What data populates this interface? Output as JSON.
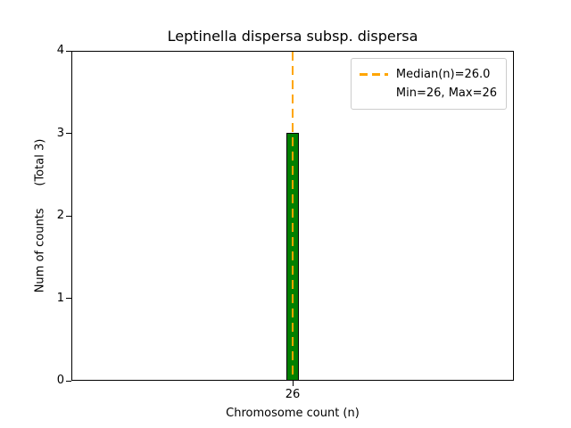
{
  "chart_data": {
    "type": "bar",
    "title": "Leptinella dispersa subsp. dispersa",
    "xlabel": "Chromosome count (n)",
    "ylabel": "Num of counts      (Total 3)",
    "categories": [
      "26"
    ],
    "values": [
      3
    ],
    "ylim": [
      0,
      4
    ],
    "yticks": [
      "0",
      "1",
      "2",
      "3",
      "4"
    ],
    "grid": false,
    "legend_position": "upper right",
    "legend": [
      {
        "label": "Median(n)=26.0",
        "sample": "orange-dashed-line"
      },
      {
        "label": "Min=26, Max=26",
        "sample": "none"
      }
    ],
    "annotations": {
      "median_line": {
        "x": "26",
        "style": "dashed",
        "color": "#ffa500"
      }
    },
    "colors": {
      "bar_fill": "#008000",
      "bar_edge": "#000000",
      "median_line": "#ffa500",
      "axes": "#000000",
      "background": "#ffffff"
    }
  }
}
